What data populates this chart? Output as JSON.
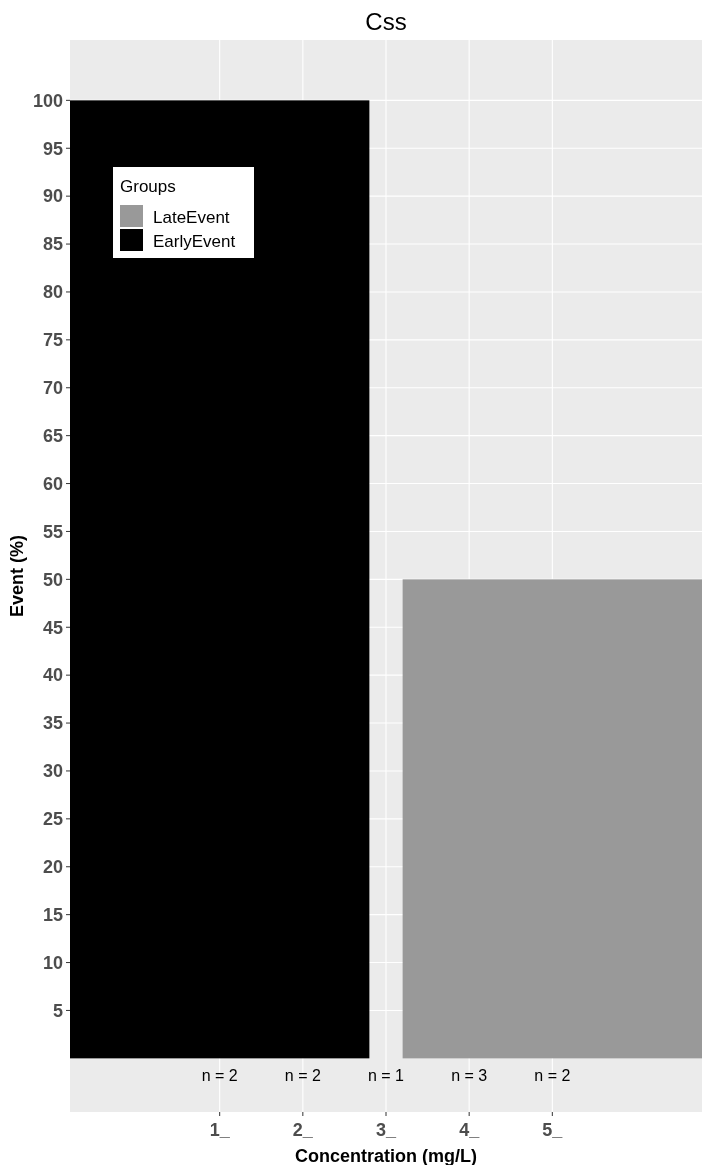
{
  "chart_data": {
    "type": "bar",
    "title": "Css",
    "xlabel": "Concentration (mg/L)",
    "ylabel": "Event (%)",
    "legend_title": "Groups",
    "x": [
      1,
      5
    ],
    "series": [
      {
        "name": "LateEvent",
        "color": "#999999",
        "values": [
          null,
          50
        ]
      },
      {
        "name": "EarlyEvent",
        "color": "#000000",
        "values": [
          100,
          null
        ]
      }
    ],
    "xlim": [
      -0.8,
      6.8
    ],
    "xticks": [
      {
        "value": 1,
        "label": "1_"
      },
      {
        "value": 2,
        "label": "2_"
      },
      {
        "value": 3,
        "label": "3_"
      },
      {
        "value": 4,
        "label": "4_"
      },
      {
        "value": 5,
        "label": "5_"
      }
    ],
    "ylim": [
      -5.6,
      106.3
    ],
    "yticks": [
      5,
      10,
      15,
      20,
      25,
      30,
      35,
      40,
      45,
      50,
      55,
      60,
      65,
      70,
      75,
      80,
      85,
      90,
      95,
      100
    ],
    "grid": true,
    "legend": "top left",
    "annotations": [
      "n = 2",
      "n = 2",
      "n = 1",
      "n = 3",
      "n = 2"
    ]
  }
}
